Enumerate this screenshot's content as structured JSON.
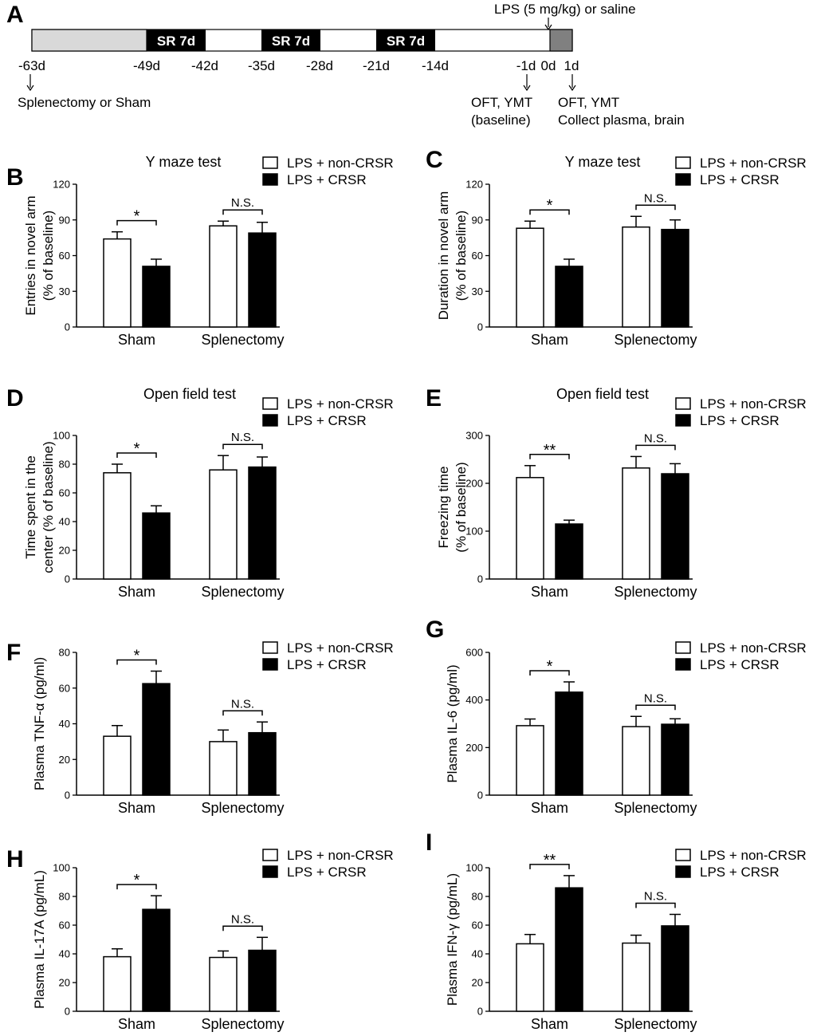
{
  "timeline": {
    "panel_label": "A",
    "top_label": "LPS (5 mg/kg) or saline",
    "blocks": [
      "SR 7d",
      "SR 7d",
      "SR 7d"
    ],
    "ticks": [
      "-63d",
      "-49d",
      "-42d",
      "-35d",
      "-28d",
      "-21d",
      "-14d",
      "-1d",
      "0d",
      "1d"
    ],
    "notes": {
      "surgery": "Splenectomy or Sham",
      "baseline_1": "OFT, YMT",
      "baseline_2": "(baseline)",
      "post_1": "OFT, YMT",
      "post_2": "Collect plasma, brain"
    }
  },
  "colors": {
    "non_crsr": "#ffffff",
    "crsr": "#000000",
    "stroke": "#000000",
    "timeline_pre": "#d9d9d9",
    "timeline_lps": "#808080"
  },
  "chart_data": [
    {
      "panel": "B",
      "type": "bar",
      "title": "Y maze test",
      "ylabel": [
        "Entries in novel arm",
        "(% of baseline)"
      ],
      "categories": [
        "Sham",
        "Splenectomy"
      ],
      "legend": [
        "LPS + non-CRSR",
        "LPS + CRSR"
      ],
      "ylim": [
        0,
        120
      ],
      "yticks": [
        0,
        30,
        60,
        90,
        120
      ],
      "series": [
        {
          "name": "LPS + non-CRSR",
          "values": [
            74,
            85
          ],
          "errors": [
            6,
            4
          ]
        },
        {
          "name": "LPS + CRSR",
          "values": [
            51,
            79
          ],
          "errors": [
            6,
            9
          ]
        }
      ],
      "significance": [
        "*",
        "N.S."
      ]
    },
    {
      "panel": "C",
      "type": "bar",
      "title": "Y maze test",
      "ylabel": [
        "Duration in novel arm",
        "(% of baseline)"
      ],
      "categories": [
        "Sham",
        "Splenectomy"
      ],
      "legend": [
        "LPS + non-CRSR",
        "LPS + CRSR"
      ],
      "ylim": [
        0,
        120
      ],
      "yticks": [
        0,
        30,
        60,
        90,
        120
      ],
      "series": [
        {
          "name": "LPS + non-CRSR",
          "values": [
            83,
            84
          ],
          "errors": [
            6,
            9
          ]
        },
        {
          "name": "LPS + CRSR",
          "values": [
            51,
            82
          ],
          "errors": [
            6,
            8
          ]
        }
      ],
      "significance": [
        "*",
        "N.S."
      ]
    },
    {
      "panel": "D",
      "type": "bar",
      "title": "Open field test",
      "ylabel": [
        "Time spent in the",
        "center (% of baseline)"
      ],
      "categories": [
        "Sham",
        "Splenectomy"
      ],
      "legend": [
        "LPS + non-CRSR",
        "LPS + CRSR"
      ],
      "ylim": [
        0,
        100
      ],
      "yticks": [
        0,
        20,
        40,
        60,
        80,
        100
      ],
      "series": [
        {
          "name": "LPS + non-CRSR",
          "values": [
            74,
            76
          ],
          "errors": [
            6,
            10
          ]
        },
        {
          "name": "LPS + CRSR",
          "values": [
            46,
            78
          ],
          "errors": [
            5,
            7
          ]
        }
      ],
      "significance": [
        "*",
        "N.S."
      ]
    },
    {
      "panel": "E",
      "type": "bar",
      "title": "Open field test",
      "ylabel": [
        "Freezing time",
        "(% of baseline)"
      ],
      "categories": [
        "Sham",
        "Splenectomy"
      ],
      "legend": [
        "LPS + non-CRSR",
        "LPS + CRSR"
      ],
      "ylim": [
        0,
        300
      ],
      "yticks": [
        0,
        100,
        200,
        300
      ],
      "series": [
        {
          "name": "LPS + non-CRSR",
          "values": [
            212,
            232
          ],
          "errors": [
            25,
            24
          ]
        },
        {
          "name": "LPS + CRSR",
          "values": [
            115,
            220
          ],
          "errors": [
            8,
            21
          ]
        }
      ],
      "significance": [
        "**",
        "N.S."
      ]
    },
    {
      "panel": "F",
      "type": "bar",
      "title": "",
      "ylabel": [
        "Plasma TNF-α  (pg/ml)"
      ],
      "categories": [
        "Sham",
        "Splenectomy"
      ],
      "legend": [
        "LPS + non-CRSR",
        "LPS + CRSR"
      ],
      "ylim": [
        0,
        80
      ],
      "yticks": [
        0,
        20,
        40,
        60,
        80
      ],
      "series": [
        {
          "name": "LPS + non-CRSR",
          "values": [
            33,
            30
          ],
          "errors": [
            6,
            6.5
          ]
        },
        {
          "name": "LPS + CRSR",
          "values": [
            62.5,
            35
          ],
          "errors": [
            7,
            6
          ]
        }
      ],
      "significance": [
        "*",
        "N.S."
      ]
    },
    {
      "panel": "G",
      "type": "bar",
      "title": "",
      "ylabel": [
        "Plasma IL-6 (pg/ml)"
      ],
      "categories": [
        "Sham",
        "Splenectomy"
      ],
      "legend": [
        "LPS + non-CRSR",
        "LPS + CRSR"
      ],
      "ylim": [
        0,
        600
      ],
      "yticks": [
        0,
        200,
        400,
        600
      ],
      "series": [
        {
          "name": "LPS + non-CRSR",
          "values": [
            292,
            288
          ],
          "errors": [
            28,
            43
          ]
        },
        {
          "name": "LPS + CRSR",
          "values": [
            433,
            298
          ],
          "errors": [
            43,
            23
          ]
        }
      ],
      "significance": [
        "*",
        "N.S."
      ]
    },
    {
      "panel": "H",
      "type": "bar",
      "title": "",
      "ylabel": [
        "Plasma IL-17A (pg/mL)"
      ],
      "categories": [
        "Sham",
        "Splenectomy"
      ],
      "legend": [
        "LPS + non-CRSR",
        "LPS + CRSR"
      ],
      "ylim": [
        0,
        100
      ],
      "yticks": [
        0,
        20,
        40,
        60,
        80,
        100
      ],
      "series": [
        {
          "name": "LPS + non-CRSR",
          "values": [
            38,
            37.5
          ],
          "errors": [
            5.5,
            4.5
          ]
        },
        {
          "name": "LPS + CRSR",
          "values": [
            71,
            42.5
          ],
          "errors": [
            9.5,
            9
          ]
        }
      ],
      "significance": [
        "*",
        "N.S."
      ]
    },
    {
      "panel": "I",
      "type": "bar",
      "title": "",
      "ylabel": [
        "Plasma IFN-γ  (pg/mL)"
      ],
      "categories": [
        "Sham",
        "Splenectomy"
      ],
      "legend": [
        "LPS + non-CRSR",
        "LPS + CRSR"
      ],
      "ylim": [
        0,
        100
      ],
      "yticks": [
        0,
        20,
        40,
        60,
        80,
        100
      ],
      "series": [
        {
          "name": "LPS + non-CRSR",
          "values": [
            47,
            47.5
          ],
          "errors": [
            6.5,
            5.5
          ]
        },
        {
          "name": "LPS + CRSR",
          "values": [
            86,
            59.5
          ],
          "errors": [
            8.5,
            8
          ]
        }
      ],
      "significance": [
        "**",
        "N.S."
      ]
    }
  ]
}
